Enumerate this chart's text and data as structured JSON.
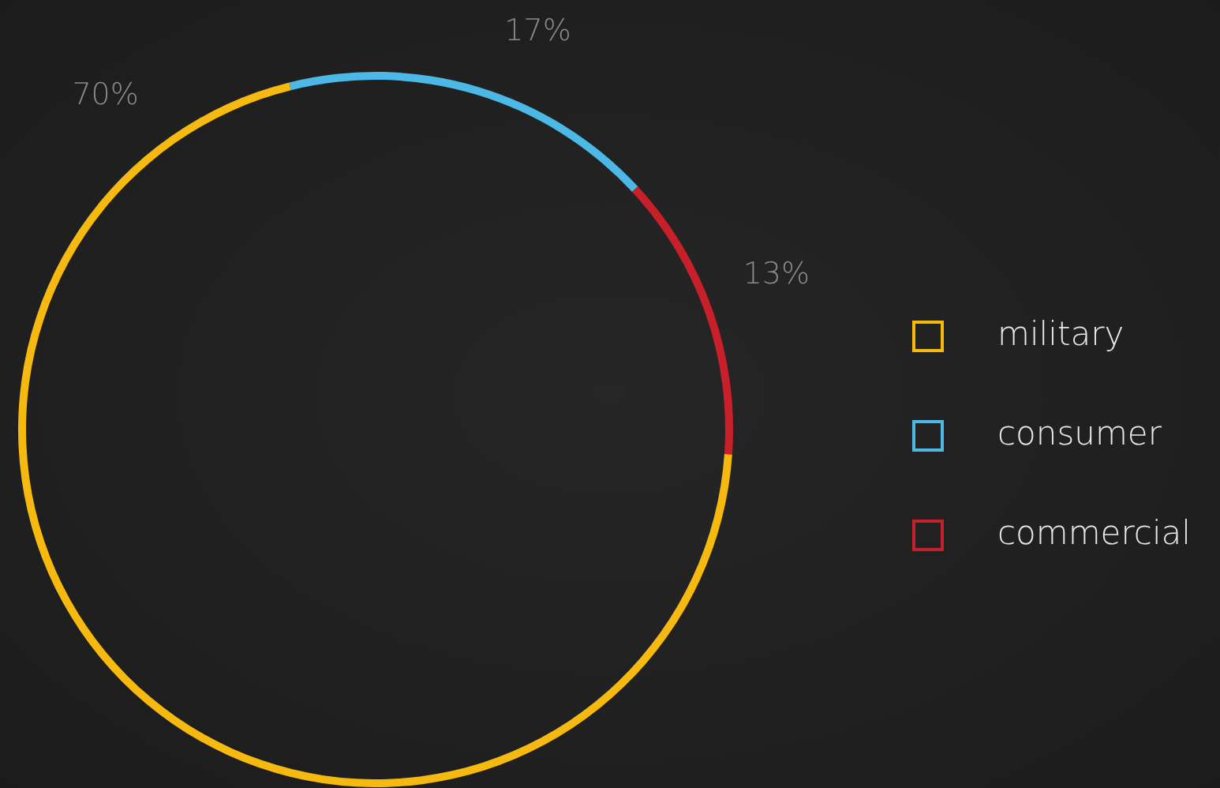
{
  "chart_data": {
    "type": "donut",
    "categories": [
      "military",
      "consumer",
      "commercial"
    ],
    "values": [
      70,
      17,
      13
    ],
    "colors": [
      "#f5b90f",
      "#4bb8e6",
      "#c8202a"
    ],
    "value_labels": [
      "70%",
      "17%",
      "13%"
    ],
    "legend": "right"
  }
}
